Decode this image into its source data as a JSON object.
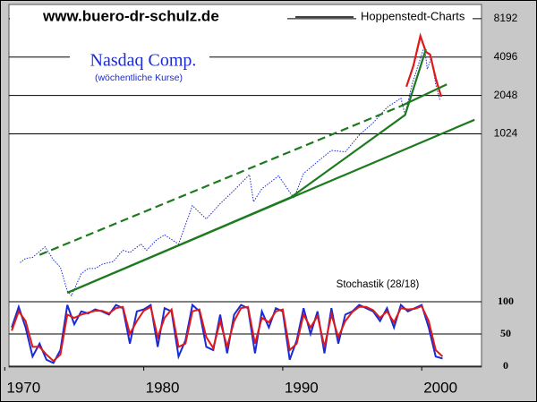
{
  "header": {
    "site": "www.buero-dr-schulz.de",
    "source": "Hoppenstedt-Charts"
  },
  "chart_data": [
    {
      "type": "line",
      "title": "Nasdaq Comp.",
      "subtitle": "(wöchentliche Kurse)",
      "log_scale": true,
      "xlim": [
        1970.3,
        2004.3
      ],
      "ylim": [
        51,
        10600
      ],
      "yticks": [
        1024,
        2048,
        4096,
        8192
      ],
      "grid": true,
      "series": [
        {
          "color": "#1a2bd6",
          "line_style": "dotted",
          "x": [
            1971.1,
            1971.5,
            1972.0,
            1972.9,
            1973.5,
            1974.0,
            1974.5,
            1974.8,
            1975.5,
            1976.0,
            1976.5,
            1977.0,
            1977.8,
            1978.5,
            1979.0,
            1979.8,
            1980.2,
            1980.9,
            1981.5,
            1982.5,
            1983.5,
            1984.5,
            1985.5,
            1986.5,
            1987.6,
            1987.9,
            1988.5,
            1989.7,
            1990.8,
            1991.5,
            1992.5,
            1993.5,
            1994.5,
            1995.5,
            1996.5,
            1997.5,
            1998.5,
            1998.8,
            1999.3,
            1999.9,
            2000.2,
            2000.4,
            2000.7,
            2001.0,
            2001.3
          ],
          "values": [
            100,
            108,
            110,
            133,
            105,
            92,
            60,
            55,
            82,
            90,
            90,
            97,
            102,
            125,
            120,
            140,
            125,
            150,
            165,
            140,
            280,
            220,
            290,
            370,
            490,
            300,
            380,
            480,
            320,
            500,
            620,
            760,
            740,
            1000,
            1250,
            1650,
            1950,
            1450,
            2500,
            4000,
            5000,
            3300,
            4100,
            2500,
            1900
          ]
        },
        {
          "color": "#e01818",
          "line_style": "solid",
          "x": [
            1998.9,
            1999.4,
            1999.9,
            2000.3,
            2000.6,
            2001.0,
            2001.4
          ],
          "values": [
            2400,
            3500,
            6000,
            4500,
            4300,
            2800,
            2000
          ]
        },
        {
          "color": "#1e7a1e",
          "line_style": "dashed",
          "x": [
            1972.5,
            1998.5
          ],
          "values": [
            115,
            1690
          ]
        },
        {
          "color": "#1e7a1e",
          "line_style": "solid",
          "x": [
            1974.5,
            1990.6,
            1998.8,
            2000.3
          ],
          "values": [
            58,
            326,
            1440,
            4720
          ]
        },
        {
          "color": "#1e7a1e",
          "line_style": "solid",
          "x": [
            1974.5,
            2003.8
          ],
          "values": [
            58,
            1320
          ]
        },
        {
          "color": "#1e7a1e",
          "line_style": "solid",
          "x": [
            1998.5,
            2001.8
          ],
          "values": [
            1690,
            2500
          ]
        }
      ]
    },
    {
      "type": "line",
      "title": "Stochastik (28/18)",
      "xlim": [
        1970.3,
        2004.3
      ],
      "ylim": [
        0,
        100
      ],
      "yticks": [
        0,
        50,
        100
      ],
      "grid": true,
      "xticks": [
        1970,
        1980,
        1990,
        2000
      ],
      "x": [
        1970.5,
        1971,
        1971.5,
        1972,
        1972.5,
        1973,
        1973.5,
        1974,
        1974.5,
        1975,
        1975.5,
        1976,
        1976.5,
        1977,
        1977.5,
        1978,
        1978.5,
        1979,
        1979.5,
        1980,
        1980.5,
        1981,
        1981.5,
        1982,
        1982.5,
        1983,
        1983.5,
        1984,
        1984.5,
        1985,
        1985.5,
        1986,
        1986.5,
        1987,
        1987.5,
        1988,
        1988.5,
        1989,
        1989.5,
        1990,
        1990.5,
        1991,
        1991.5,
        1992,
        1992.5,
        1993,
        1993.5,
        1994,
        1994.5,
        1995,
        1995.5,
        1996,
        1996.5,
        1997,
        1997.5,
        1998,
        1998.5,
        1999,
        1999.5,
        2000,
        2000.5,
        2001,
        2001.5
      ],
      "series": [
        {
          "color": "#1a2bd6",
          "values": [
            60,
            92,
            60,
            15,
            35,
            10,
            5,
            25,
            95,
            65,
            85,
            82,
            88,
            85,
            80,
            95,
            90,
            35,
            85,
            88,
            95,
            30,
            90,
            85,
            15,
            40,
            95,
            85,
            30,
            25,
            80,
            20,
            80,
            95,
            90,
            20,
            85,
            60,
            90,
            85,
            10,
            40,
            90,
            50,
            85,
            20,
            90,
            35,
            80,
            85,
            95,
            90,
            85,
            70,
            90,
            60,
            95,
            85,
            90,
            95,
            60,
            15,
            12
          ]
        },
        {
          "color": "#e01818",
          "values": [
            55,
            85,
            70,
            30,
            30,
            18,
            8,
            18,
            80,
            75,
            80,
            83,
            86,
            86,
            82,
            90,
            92,
            50,
            70,
            86,
            92,
            45,
            75,
            88,
            30,
            35,
            85,
            88,
            45,
            28,
            70,
            30,
            70,
            90,
            92,
            35,
            75,
            68,
            85,
            88,
            25,
            35,
            80,
            60,
            78,
            30,
            80,
            45,
            70,
            84,
            92,
            92,
            87,
            75,
            85,
            68,
            90,
            88,
            89,
            93,
            70,
            25,
            15
          ]
        }
      ]
    }
  ]
}
